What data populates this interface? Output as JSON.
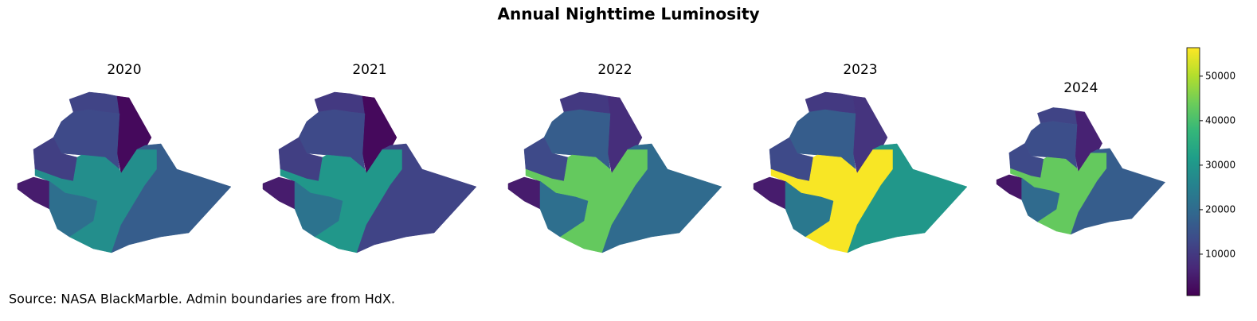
{
  "chart_data": {
    "type": "choropleth",
    "title": "Annual Nighttime Luminosity",
    "source": "Source: NASA BlackMarble. Admin boundaries are from HdX.",
    "colormap": "viridis",
    "clim": [
      700,
      56400
    ],
    "cticks": [
      10000,
      20000,
      30000,
      40000,
      50000
    ],
    "panels": [
      {
        "title": "2020",
        "values": [
          12000,
          2000,
          13000,
          11000,
          5000,
          28000,
          21000,
          17000
        ]
      },
      {
        "title": "2021",
        "values": [
          10000,
          2000,
          13000,
          11000,
          5000,
          30000,
          22000,
          12000
        ]
      },
      {
        "title": "2022",
        "values": [
          10000,
          8000,
          17000,
          13000,
          5000,
          43000,
          21000,
          20000
        ]
      },
      {
        "title": "2023",
        "values": [
          10000,
          9000,
          17000,
          13000,
          5000,
          56000,
          23000,
          30000
        ]
      },
      {
        "title": "2024",
        "values": [
          12000,
          6000,
          14000,
          13000,
          4000,
          43000,
          20000,
          17000
        ]
      }
    ]
  }
}
